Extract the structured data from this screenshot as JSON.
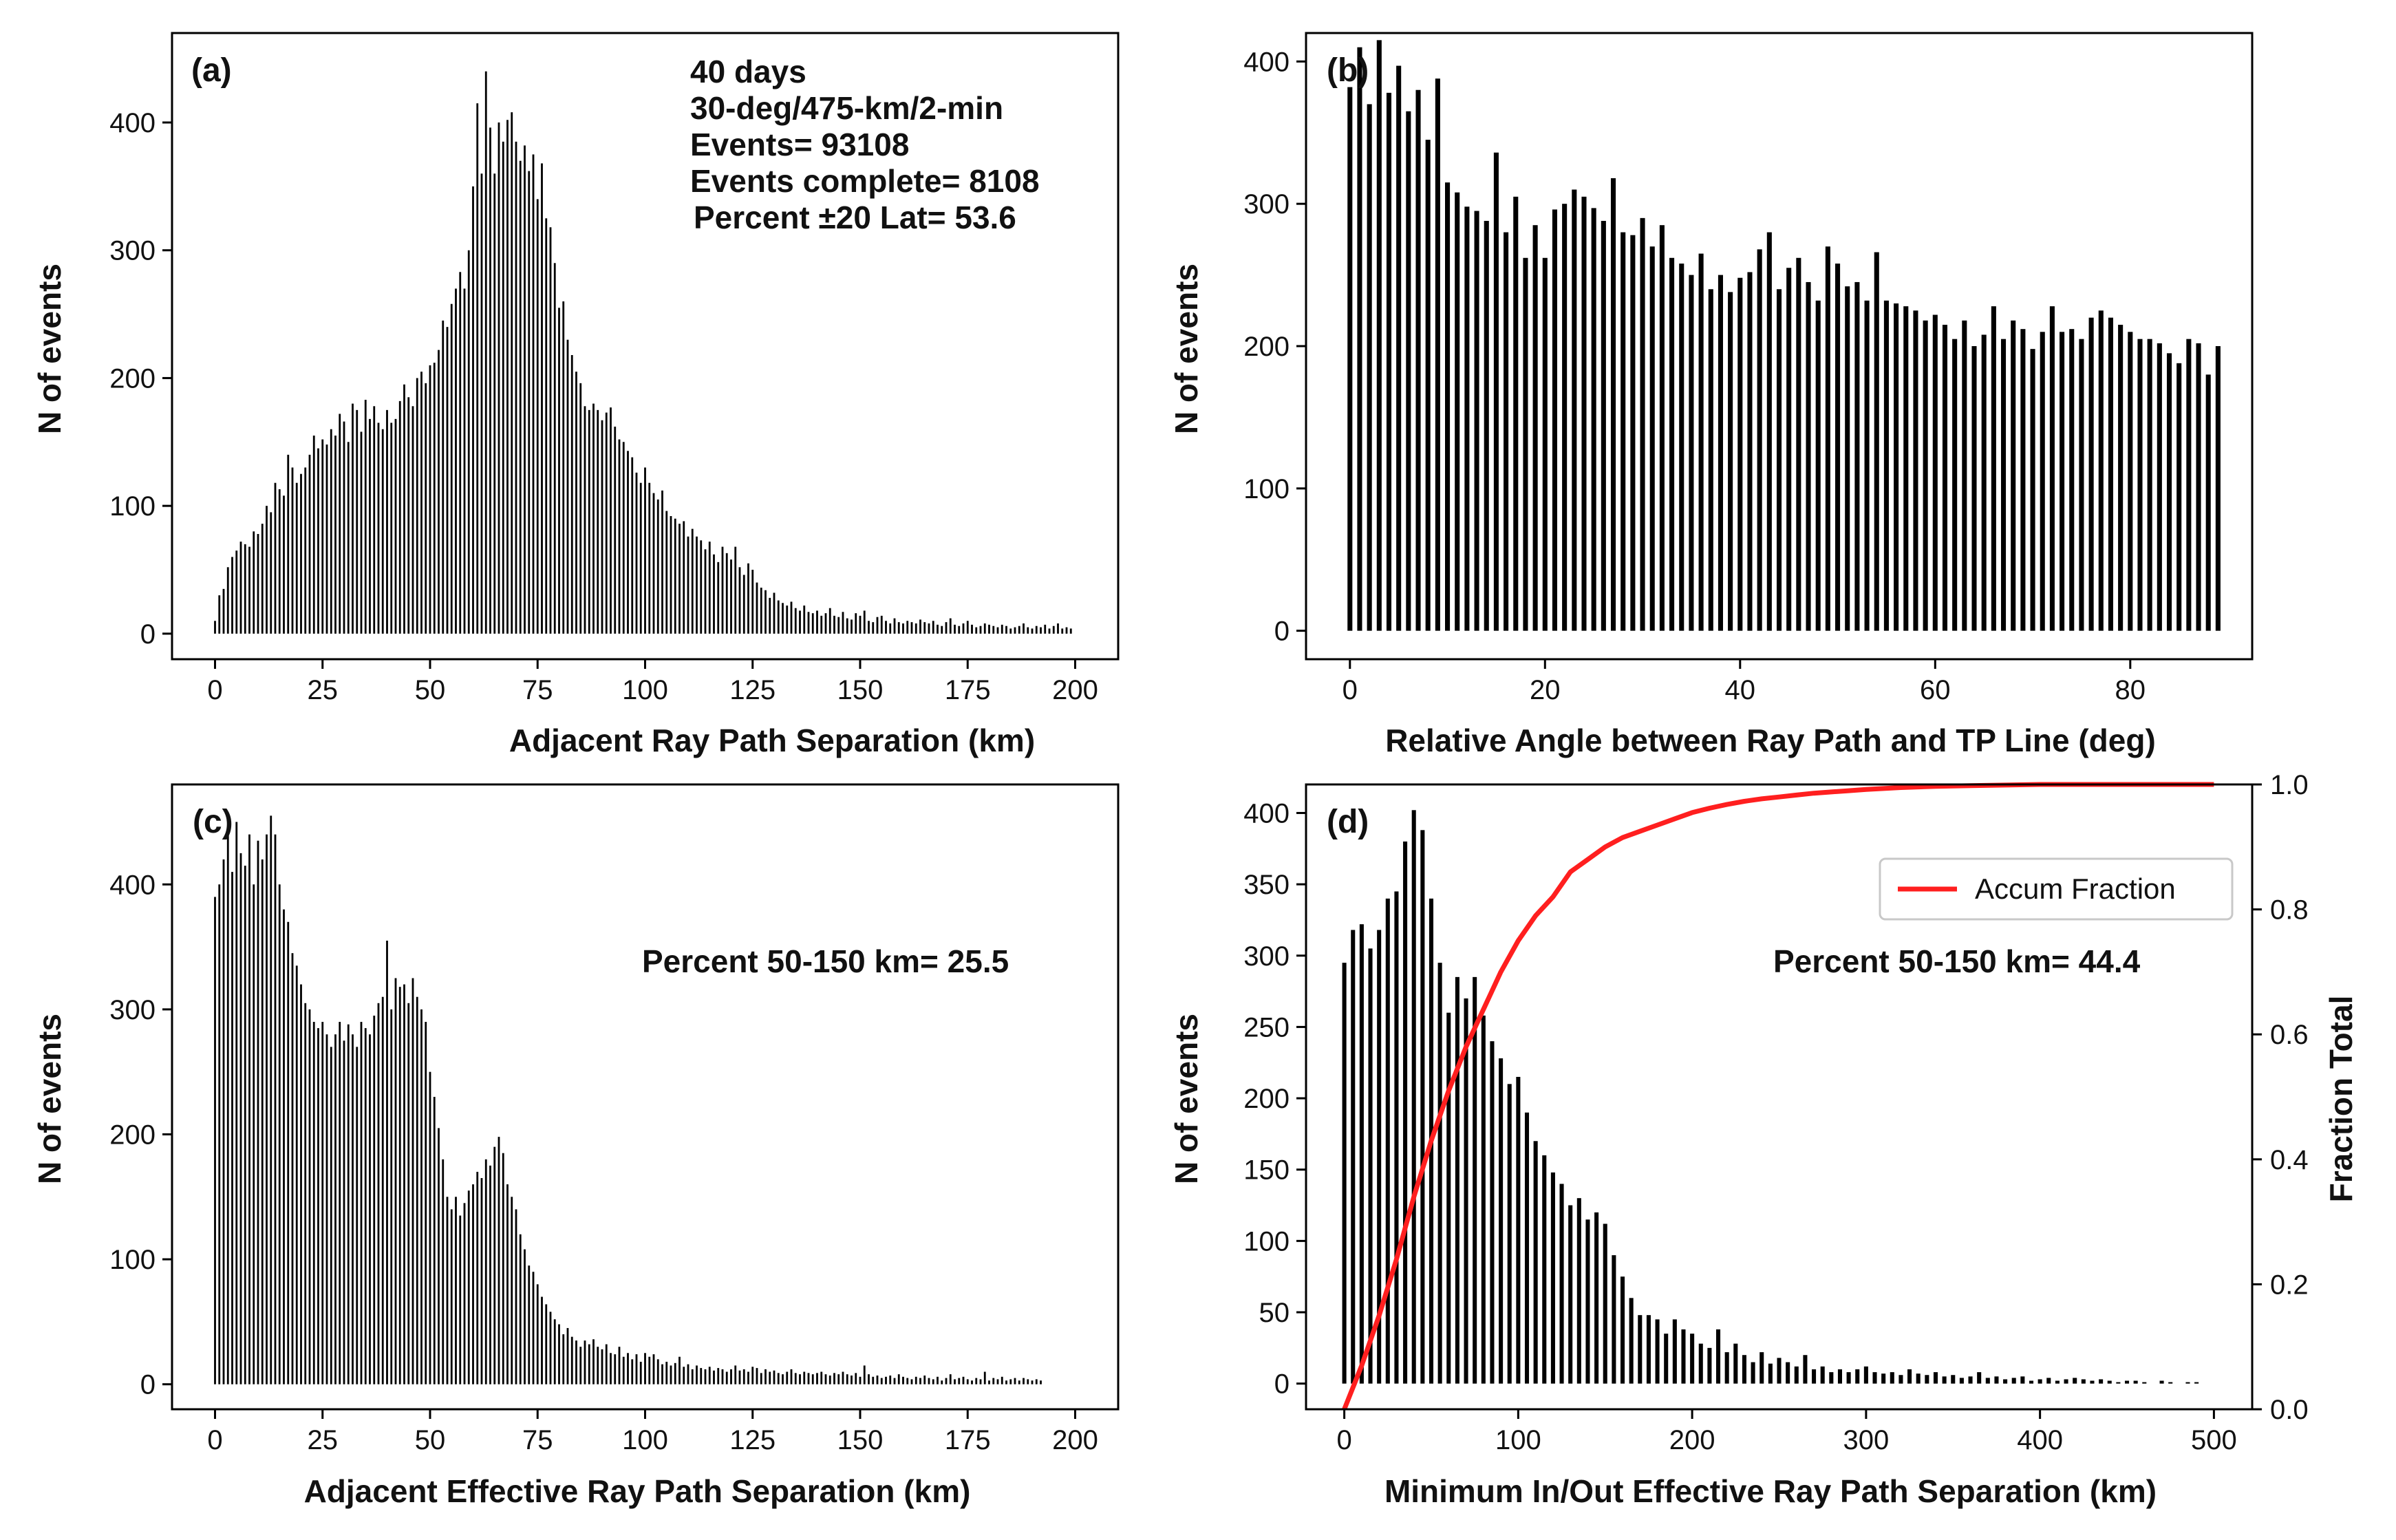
{
  "chart_data": [
    {
      "id": "a",
      "type": "bar",
      "panel_label": "(a)",
      "xlabel": "Adjacent Ray Path Separation (km)",
      "ylabel": "N of events",
      "xlim": [
        -10,
        210
      ],
      "ylim": [
        -20,
        470
      ],
      "xticks": [
        0,
        25,
        50,
        75,
        100,
        125,
        150,
        175,
        200
      ],
      "yticks": [
        0,
        100,
        200,
        300,
        400
      ],
      "bar_width": 0.45,
      "x": [
        0,
        1,
        2,
        3,
        4,
        5,
        6,
        7,
        8,
        9,
        10,
        11,
        12,
        13,
        14,
        15,
        16,
        17,
        18,
        19,
        20,
        21,
        22,
        23,
        24,
        25,
        26,
        27,
        28,
        29,
        30,
        31,
        32,
        33,
        34,
        35,
        36,
        37,
        38,
        39,
        40,
        41,
        42,
        43,
        44,
        45,
        46,
        47,
        48,
        49,
        50,
        51,
        52,
        53,
        54,
        55,
        56,
        57,
        58,
        59,
        60,
        61,
        62,
        63,
        64,
        65,
        66,
        67,
        68,
        69,
        70,
        71,
        72,
        73,
        74,
        75,
        76,
        77,
        78,
        79,
        80,
        81,
        82,
        83,
        84,
        85,
        86,
        87,
        88,
        89,
        90,
        91,
        92,
        93,
        94,
        95,
        96,
        97,
        98,
        99,
        100,
        101,
        102,
        103,
        104,
        105,
        106,
        107,
        108,
        109,
        110,
        111,
        112,
        113,
        114,
        115,
        116,
        117,
        118,
        119,
        120,
        121,
        122,
        123,
        124,
        125,
        126,
        127,
        128,
        129,
        130,
        131,
        132,
        133,
        134,
        135,
        136,
        137,
        138,
        139,
        140,
        141,
        142,
        143,
        144,
        145,
        146,
        147,
        148,
        149,
        150,
        151,
        152,
        153,
        154,
        155,
        156,
        157,
        158,
        159,
        160,
        161,
        162,
        163,
        164,
        165,
        166,
        167,
        168,
        169,
        170,
        171,
        172,
        173,
        174,
        175,
        176,
        177,
        178,
        179,
        180,
        181,
        182,
        183,
        184,
        185,
        186,
        187,
        188,
        189,
        190,
        191,
        192,
        193,
        194,
        195,
        196,
        197,
        198,
        199
      ],
      "values": [
        10,
        30,
        35,
        52,
        60,
        65,
        72,
        70,
        68,
        80,
        78,
        86,
        100,
        95,
        118,
        113,
        108,
        140,
        130,
        118,
        125,
        130,
        140,
        155,
        145,
        152,
        148,
        160,
        155,
        172,
        166,
        150,
        180,
        175,
        158,
        183,
        168,
        178,
        165,
        160,
        175,
        165,
        168,
        182,
        195,
        185,
        178,
        200,
        205,
        196,
        210,
        212,
        222,
        245,
        240,
        258,
        270,
        283,
        270,
        300,
        350,
        415,
        360,
        440,
        396,
        360,
        400,
        385,
        402,
        408,
        385,
        370,
        382,
        362,
        375,
        340,
        368,
        325,
        318,
        290,
        255,
        260,
        230,
        218,
        205,
        196,
        178,
        175,
        180,
        175,
        167,
        173,
        177,
        162,
        152,
        150,
        143,
        138,
        126,
        118,
        130,
        118,
        110,
        105,
        112,
        96,
        92,
        90,
        86,
        88,
        76,
        82,
        76,
        73,
        66,
        72,
        62,
        56,
        68,
        63,
        58,
        68,
        52,
        46,
        55,
        50,
        40,
        36,
        34,
        28,
        32,
        26,
        24,
        22,
        25,
        20,
        18,
        22,
        17,
        16,
        18,
        14,
        16,
        20,
        14,
        13,
        17,
        12,
        11,
        16,
        14,
        18,
        10,
        9,
        13,
        14,
        10,
        8,
        12,
        9,
        8,
        10,
        9,
        8,
        11,
        9,
        8,
        10,
        7,
        6,
        9,
        12,
        7,
        6,
        8,
        10,
        7,
        5,
        6,
        8,
        7,
        6,
        5,
        7,
        6,
        4,
        5,
        6,
        8,
        5,
        4,
        6,
        5,
        7,
        4,
        6,
        8,
        4,
        5,
        4
      ],
      "annotations": [
        "40 days",
        "30-deg/475-km/2-min",
        "Events= 93108",
        "Events complete= 8108",
        "Percent ±20 Lat= 53.6"
      ]
    },
    {
      "id": "b",
      "type": "bar",
      "panel_label": "(b)",
      "xlabel": "Relative Angle between Ray Path and TP Line (deg)",
      "ylabel": "N of events",
      "xlim": [
        -4.5,
        92.5
      ],
      "ylim": [
        -20,
        420
      ],
      "xticks": [
        0,
        20,
        40,
        60,
        80
      ],
      "yticks": [
        0,
        100,
        200,
        300,
        400
      ],
      "bar_width": 0.5,
      "x": [
        0,
        1,
        2,
        3,
        4,
        5,
        6,
        7,
        8,
        9,
        10,
        11,
        12,
        13,
        14,
        15,
        16,
        17,
        18,
        19,
        20,
        21,
        22,
        23,
        24,
        25,
        26,
        27,
        28,
        29,
        30,
        31,
        32,
        33,
        34,
        35,
        36,
        37,
        38,
        39,
        40,
        41,
        42,
        43,
        44,
        45,
        46,
        47,
        48,
        49,
        50,
        51,
        52,
        53,
        54,
        55,
        56,
        57,
        58,
        59,
        60,
        61,
        62,
        63,
        64,
        65,
        66,
        67,
        68,
        69,
        70,
        71,
        72,
        73,
        74,
        75,
        76,
        77,
        78,
        79,
        80,
        81,
        82,
        83,
        84,
        85,
        86,
        87,
        88,
        89
      ],
      "values": [
        382,
        410,
        370,
        415,
        378,
        397,
        365,
        380,
        345,
        388,
        315,
        308,
        298,
        295,
        288,
        336,
        280,
        305,
        262,
        285,
        262,
        296,
        300,
        310,
        305,
        297,
        288,
        318,
        280,
        278,
        290,
        270,
        285,
        262,
        258,
        250,
        265,
        240,
        250,
        238,
        248,
        252,
        268,
        280,
        240,
        255,
        262,
        245,
        232,
        270,
        258,
        242,
        245,
        232,
        266,
        232,
        230,
        228,
        225,
        218,
        222,
        215,
        205,
        218,
        200,
        208,
        228,
        205,
        218,
        212,
        198,
        210,
        228,
        210,
        212,
        205,
        220,
        225,
        220,
        215,
        210,
        205,
        205,
        202,
        195,
        188,
        205,
        202,
        180,
        200
      ]
    },
    {
      "id": "c",
      "type": "bar",
      "panel_label": "(c)",
      "xlabel": "Adjacent Effective Ray Path Separation (km)",
      "ylabel": "N of events",
      "xlim": [
        -10,
        210
      ],
      "ylim": [
        -20,
        480
      ],
      "xticks": [
        0,
        25,
        50,
        75,
        100,
        125,
        150,
        175,
        200
      ],
      "yticks": [
        0,
        100,
        200,
        300,
        400
      ],
      "bar_width": 0.45,
      "x": [
        0,
        1,
        2,
        3,
        4,
        5,
        6,
        7,
        8,
        9,
        10,
        11,
        12,
        13,
        14,
        15,
        16,
        17,
        18,
        19,
        20,
        21,
        22,
        23,
        24,
        25,
        26,
        27,
        28,
        29,
        30,
        31,
        32,
        33,
        34,
        35,
        36,
        37,
        38,
        39,
        40,
        41,
        42,
        43,
        44,
        45,
        46,
        47,
        48,
        49,
        50,
        51,
        52,
        53,
        54,
        55,
        56,
        57,
        58,
        59,
        60,
        61,
        62,
        63,
        64,
        65,
        66,
        67,
        68,
        69,
        70,
        71,
        72,
        73,
        74,
        75,
        76,
        77,
        78,
        79,
        80,
        81,
        82,
        83,
        84,
        85,
        86,
        87,
        88,
        89,
        90,
        91,
        92,
        93,
        94,
        95,
        96,
        97,
        98,
        99,
        100,
        101,
        102,
        103,
        104,
        105,
        106,
        107,
        108,
        109,
        110,
        111,
        112,
        113,
        114,
        115,
        116,
        117,
        118,
        119,
        120,
        121,
        122,
        123,
        124,
        125,
        126,
        127,
        128,
        129,
        130,
        131,
        132,
        133,
        134,
        135,
        136,
        137,
        138,
        139,
        140,
        141,
        142,
        143,
        144,
        145,
        146,
        147,
        148,
        149,
        150,
        151,
        152,
        153,
        154,
        155,
        156,
        157,
        158,
        159,
        160,
        161,
        162,
        163,
        164,
        165,
        166,
        167,
        168,
        169,
        170,
        171,
        172,
        173,
        174,
        175,
        176,
        177,
        178,
        179,
        180,
        181,
        182,
        183,
        184,
        185,
        186,
        187,
        188,
        189,
        190,
        191,
        192
      ],
      "values": [
        390,
        400,
        420,
        440,
        410,
        450,
        425,
        415,
        440,
        400,
        435,
        420,
        440,
        455,
        440,
        400,
        380,
        370,
        345,
        335,
        320,
        305,
        300,
        290,
        285,
        290,
        280,
        270,
        280,
        290,
        275,
        288,
        280,
        270,
        290,
        285,
        280,
        295,
        305,
        310,
        355,
        300,
        325,
        318,
        320,
        305,
        325,
        310,
        300,
        290,
        250,
        230,
        205,
        180,
        150,
        140,
        150,
        135,
        145,
        155,
        160,
        170,
        165,
        180,
        175,
        190,
        198,
        185,
        160,
        150,
        140,
        120,
        108,
        95,
        90,
        80,
        70,
        64,
        58,
        52,
        48,
        40,
        45,
        38,
        35,
        30,
        35,
        32,
        36,
        30,
        28,
        32,
        25,
        24,
        30,
        22,
        25,
        20,
        24,
        18,
        25,
        22,
        24,
        20,
        16,
        18,
        15,
        17,
        22,
        14,
        16,
        12,
        15,
        13,
        12,
        14,
        11,
        13,
        12,
        10,
        12,
        15,
        11,
        12,
        10,
        14,
        13,
        9,
        12,
        10,
        11,
        9,
        8,
        10,
        12,
        9,
        8,
        10,
        9,
        8,
        9,
        10,
        8,
        7,
        9,
        8,
        10,
        8,
        7,
        9,
        6,
        15,
        8,
        6,
        7,
        5,
        6,
        7,
        5,
        8,
        6,
        5,
        4,
        6,
        5,
        7,
        5,
        4,
        6,
        3,
        5,
        8,
        4,
        5,
        6,
        4,
        3,
        5,
        4,
        10,
        3,
        5,
        4,
        6,
        3,
        4,
        5,
        3,
        5,
        4,
        3,
        4,
        3
      ],
      "annotations": [
        "Percent 50-150 km= 25.5"
      ]
    },
    {
      "id": "d",
      "type": "bar",
      "panel_label": "(d)",
      "xlabel": "Minimum In/Out Effective Ray Path Separation (km)",
      "ylabel": "N of events",
      "ylabel_right": "Fraction Total",
      "xlim": [
        -22,
        522
      ],
      "ylim": [
        -18,
        420
      ],
      "ylim_right": [
        0.0,
        1.0
      ],
      "xticks": [
        0,
        100,
        200,
        300,
        400,
        500
      ],
      "yticks": [
        0,
        50,
        100,
        150,
        200,
        250,
        300,
        350,
        400
      ],
      "yticks_right": [
        0.0,
        0.2,
        0.4,
        0.6,
        0.8,
        1.0
      ],
      "bar_width": 2.4,
      "x": [
        0,
        5,
        10,
        15,
        20,
        25,
        30,
        35,
        40,
        45,
        50,
        55,
        60,
        65,
        70,
        75,
        80,
        85,
        90,
        95,
        100,
        105,
        110,
        115,
        120,
        125,
        130,
        135,
        140,
        145,
        150,
        155,
        160,
        165,
        170,
        175,
        180,
        185,
        190,
        195,
        200,
        205,
        210,
        215,
        220,
        225,
        230,
        235,
        240,
        245,
        250,
        255,
        260,
        265,
        270,
        275,
        280,
        285,
        290,
        295,
        300,
        305,
        310,
        315,
        320,
        325,
        330,
        335,
        340,
        345,
        350,
        355,
        360,
        365,
        370,
        375,
        380,
        385,
        390,
        395,
        400,
        405,
        410,
        415,
        420,
        425,
        430,
        435,
        440,
        445,
        450,
        455,
        460,
        465,
        470,
        475,
        480,
        485,
        490,
        495
      ],
      "values": [
        295,
        318,
        322,
        305,
        318,
        340,
        345,
        380,
        402,
        388,
        340,
        295,
        260,
        285,
        270,
        285,
        258,
        240,
        228,
        210,
        215,
        190,
        170,
        160,
        148,
        140,
        125,
        130,
        115,
        120,
        112,
        90,
        75,
        60,
        48,
        48,
        45,
        35,
        45,
        38,
        35,
        28,
        25,
        38,
        22,
        28,
        20,
        15,
        22,
        14,
        18,
        15,
        12,
        20,
        10,
        12,
        8,
        10,
        8,
        10,
        12,
        8,
        7,
        8,
        6,
        10,
        7,
        6,
        8,
        5,
        6,
        4,
        5,
        8,
        4,
        5,
        3,
        4,
        5,
        2,
        3,
        4,
        2,
        3,
        4,
        3,
        2,
        3,
        2,
        1,
        2,
        2,
        1,
        0,
        2,
        1,
        0,
        1,
        1,
        0
      ],
      "accum_fraction": {
        "label": "Accum Fraction",
        "color": "#ff1f1f",
        "x": [
          0,
          10,
          20,
          30,
          40,
          50,
          60,
          70,
          80,
          90,
          100,
          110,
          120,
          130,
          140,
          150,
          160,
          170,
          180,
          190,
          200,
          210,
          220,
          230,
          240,
          250,
          260,
          270,
          280,
          290,
          300,
          320,
          340,
          360,
          380,
          400,
          450,
          500
        ],
        "y": [
          0.0,
          0.07,
          0.15,
          0.24,
          0.34,
          0.43,
          0.51,
          0.58,
          0.64,
          0.7,
          0.75,
          0.79,
          0.82,
          0.86,
          0.88,
          0.9,
          0.915,
          0.925,
          0.935,
          0.945,
          0.955,
          0.962,
          0.968,
          0.973,
          0.977,
          0.98,
          0.983,
          0.986,
          0.988,
          0.99,
          0.992,
          0.995,
          0.997,
          0.998,
          0.999,
          1.0,
          1.0,
          1.0
        ]
      },
      "legend_location": "upper right",
      "annotations": [
        "Percent 50-150 km= 44.4"
      ]
    }
  ]
}
